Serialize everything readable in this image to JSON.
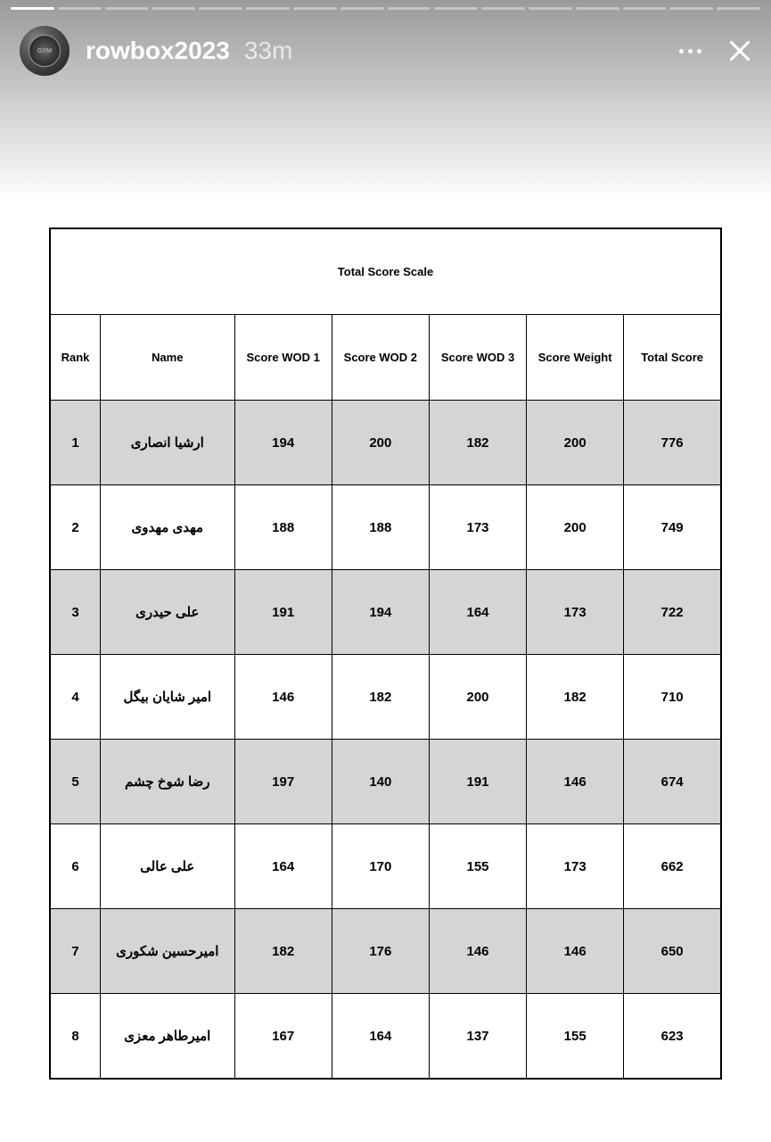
{
  "story": {
    "username": "rowbox2023",
    "timestamp": "33m",
    "progress_segments": 16,
    "progress_filled": 1
  },
  "table": {
    "title": "Total Score Scale",
    "columns": [
      "Rank",
      "Name",
      "Score WOD 1",
      "Score WOD 2",
      "Score WOD 3",
      "Score Weight",
      "Total Score"
    ],
    "rows": [
      {
        "rank": "1",
        "name": "ارشیا انصاری",
        "wod1": "194",
        "wod2": "200",
        "wod3": "182",
        "weight": "200",
        "total": "776"
      },
      {
        "rank": "2",
        "name": "مهدی مهدوی",
        "wod1": "188",
        "wod2": "188",
        "wod3": "173",
        "weight": "200",
        "total": "749"
      },
      {
        "rank": "3",
        "name": "علی حیدری",
        "wod1": "191",
        "wod2": "194",
        "wod3": "164",
        "weight": "173",
        "total": "722"
      },
      {
        "rank": "4",
        "name": "امیر شایان بیگل",
        "wod1": "146",
        "wod2": "182",
        "wod3": "200",
        "weight": "182",
        "total": "710"
      },
      {
        "rank": "5",
        "name": "رضا شوخ چشم",
        "wod1": "197",
        "wod2": "140",
        "wod3": "191",
        "weight": "146",
        "total": "674"
      },
      {
        "rank": "6",
        "name": "علی عالی",
        "wod1": "164",
        "wod2": "170",
        "wod3": "155",
        "weight": "173",
        "total": "662"
      },
      {
        "rank": "7",
        "name": "امیرحسین شکوری",
        "wod1": "182",
        "wod2": "176",
        "wod3": "146",
        "weight": "146",
        "total": "650"
      },
      {
        "rank": "8",
        "name": "امیرطاهر معزی",
        "wod1": "167",
        "wod2": "164",
        "wod3": "137",
        "weight": "155",
        "total": "623"
      }
    ]
  },
  "colors": {
    "header_gradient_start": "#9a9a9a",
    "header_gradient_end": "#ffffff",
    "table_border": "#000000",
    "table_title_bg": "#d5d5d5",
    "row_odd_bg": "#d5d5d5",
    "row_even_bg": "#ffffff",
    "text": "#000000",
    "header_text": "#ffffff"
  }
}
